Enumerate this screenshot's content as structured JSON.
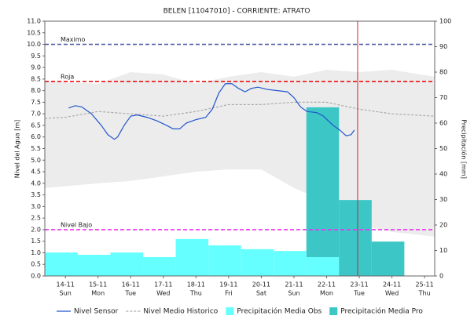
{
  "chart_data": {
    "type": "line",
    "title": "BELEN    [11047010] - CORRIENTE: ATRATO",
    "y_label": "Nivel del Agua [m]",
    "y2_label": "Precipitación [mm]",
    "xlim": [
      13.37,
      25.31
    ],
    "xticks": [
      {
        "value": 14,
        "label": "14-11"
      },
      {
        "value": 15,
        "label": "15-11"
      },
      {
        "value": 16,
        "label": "16-11"
      },
      {
        "value": 17,
        "label": "17-11"
      },
      {
        "value": 18,
        "label": "18-11"
      },
      {
        "value": 19,
        "label": "19-11"
      },
      {
        "value": 20,
        "label": "20-11"
      },
      {
        "value": 21,
        "label": "21-11"
      },
      {
        "value": 22,
        "label": "22-11"
      },
      {
        "value": 23,
        "label": "23-11"
      },
      {
        "value": 24,
        "label": "24-11"
      },
      {
        "value": 25,
        "label": "25-11"
      }
    ],
    "x_weekdays": [
      "Sun",
      "Mon",
      "Tue",
      "Wed",
      "Thu",
      "Fri",
      "Sat",
      "Sun",
      "Mon",
      "Tue",
      "Wed",
      "Thu"
    ],
    "ylim": [
      0,
      11
    ],
    "yticks": [
      {
        "value": 0,
        "label": "0.0"
      },
      {
        "value": 0.5,
        "label": "0.5"
      },
      {
        "value": 1,
        "label": "1.0"
      },
      {
        "value": 1.5,
        "label": "1.5"
      },
      {
        "value": 2,
        "label": "2.0"
      },
      {
        "value": 2.5,
        "label": "2.5"
      },
      {
        "value": 3,
        "label": "3.0"
      },
      {
        "value": 3.5,
        "label": "3.5"
      },
      {
        "value": 4,
        "label": "4.0"
      },
      {
        "value": 4.5,
        "label": "4.5"
      },
      {
        "value": 5,
        "label": "5.0"
      },
      {
        "value": 5.5,
        "label": "5.5"
      },
      {
        "value": 6,
        "label": "6.0"
      },
      {
        "value": 6.5,
        "label": "6.5"
      },
      {
        "value": 7,
        "label": "7.0"
      },
      {
        "value": 7.5,
        "label": "7.5"
      },
      {
        "value": 8,
        "label": "8.0"
      },
      {
        "value": 8.5,
        "label": "8.5"
      },
      {
        "value": 9,
        "label": "9.0"
      },
      {
        "value": 9.5,
        "label": "9.5"
      },
      {
        "value": 10,
        "label": "10.0"
      },
      {
        "value": 10.5,
        "label": "10.5"
      },
      {
        "value": 11,
        "label": "11.0"
      }
    ],
    "y2lim": [
      0,
      100
    ],
    "y2ticks": [
      0,
      10,
      20,
      30,
      40,
      50,
      60,
      70,
      80,
      90,
      100
    ],
    "historic_range": {
      "color": "#ececec",
      "x": [
        13.37,
        15,
        16,
        17,
        18,
        19,
        20,
        21,
        22,
        23,
        24,
        25.31
      ],
      "upper": [
        8.4,
        8.3,
        8.8,
        8.7,
        8.3,
        8.6,
        8.8,
        8.6,
        8.9,
        8.8,
        8.9,
        8.6
      ],
      "lower": [
        3.8,
        4.0,
        4.1,
        4.3,
        4.5,
        4.6,
        4.6,
        3.8,
        3.2,
        2.2,
        1.9,
        1.7
      ]
    },
    "reference_lines": [
      {
        "label": "Maximo",
        "value": 10,
        "color": "#4b5ba8"
      },
      {
        "label": "Roja",
        "value": 8.4,
        "color": "#ee1111"
      },
      {
        "label": "Nivel Bajo",
        "value": 2,
        "color": "#ee33ee"
      }
    ],
    "now_line_x": 22.95,
    "now_line_color": "#dd2222",
    "series": [
      {
        "name": "Precipitación Media Pro",
        "type": "bar",
        "axis": "y2",
        "color": "#3cc6c6",
        "bins": [
          21.38,
          22.38,
          23.38,
          24.38
        ],
        "values": [
          66.2,
          29.8,
          13.5
        ]
      },
      {
        "name": "Precipitación Media Obs",
        "type": "bar",
        "axis": "y2",
        "color": "#66ffff",
        "bins": [
          13.38,
          14.38,
          15.38,
          16.38,
          17.38,
          18.38,
          19.38,
          20.38,
          21.38,
          22.38
        ],
        "values": [
          9.2,
          8.3,
          9.2,
          7.4,
          14.5,
          12,
          10.5,
          9.8,
          7.4
        ]
      },
      {
        "name": "Nivel Medio Historico",
        "type": "line",
        "dash": true,
        "color": "#aaaaaa",
        "x": [
          13.37,
          14,
          15,
          16,
          17,
          18,
          19,
          20,
          21,
          22,
          23,
          24,
          25.31
        ],
        "values": [
          6.8,
          6.85,
          7.1,
          7.0,
          6.9,
          7.1,
          7.4,
          7.4,
          7.5,
          7.5,
          7.2,
          7.0,
          6.9
        ]
      },
      {
        "name": "Nivel Sensor",
        "type": "line",
        "color": "#2255cc",
        "x": [
          14.1,
          14.3,
          14.5,
          14.8,
          15.1,
          15.3,
          15.5,
          15.6,
          15.8,
          16.0,
          16.2,
          16.5,
          16.8,
          17.1,
          17.3,
          17.5,
          17.7,
          18.0,
          18.3,
          18.5,
          18.7,
          18.9,
          19.1,
          19.3,
          19.5,
          19.7,
          19.9,
          20.2,
          20.5,
          20.8,
          21.0,
          21.2,
          21.4,
          21.7,
          21.9,
          22.2,
          22.4,
          22.6,
          22.75,
          22.85
        ],
        "values": [
          7.25,
          7.35,
          7.3,
          7.0,
          6.5,
          6.1,
          5.9,
          6.0,
          6.5,
          6.9,
          6.95,
          6.85,
          6.7,
          6.5,
          6.35,
          6.35,
          6.6,
          6.75,
          6.85,
          7.2,
          7.9,
          8.3,
          8.3,
          8.1,
          7.95,
          8.1,
          8.15,
          8.05,
          8.0,
          7.95,
          7.7,
          7.3,
          7.1,
          7.05,
          6.9,
          6.5,
          6.3,
          6.05,
          6.1,
          6.3
        ]
      }
    ],
    "legend_order": [
      3,
      2,
      1,
      0
    ]
  }
}
